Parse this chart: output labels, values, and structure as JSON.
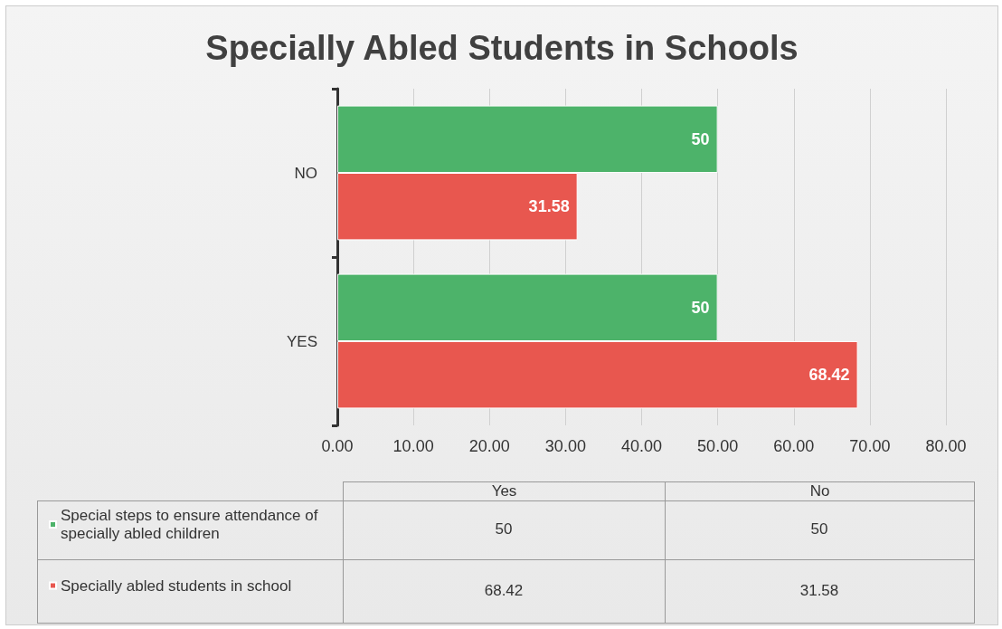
{
  "chart_data": {
    "type": "bar",
    "orientation": "horizontal",
    "title": "Specially Abled Students in Schools",
    "categories": [
      "NO",
      "YES"
    ],
    "series": [
      {
        "name": "Special steps to ensure attendance of specially abled children",
        "color": "#4db36a",
        "values": [
          50,
          50
        ]
      },
      {
        "name": "Specially abled students in school",
        "color": "#e8574f",
        "values": [
          31.58,
          68.42
        ]
      }
    ],
    "xlim": [
      0,
      80
    ],
    "xticks": [
      {
        "value": 0,
        "label": "0.00"
      },
      {
        "value": 10,
        "label": "10.00"
      },
      {
        "value": 20,
        "label": "20.00"
      },
      {
        "value": 30,
        "label": "30.00"
      },
      {
        "value": 40,
        "label": "40.00"
      },
      {
        "value": 50,
        "label": "50.00"
      },
      {
        "value": 60,
        "label": "60.00"
      },
      {
        "value": 70,
        "label": "70.00"
      },
      {
        "value": 80,
        "label": "80.00"
      }
    ],
    "grid": "x",
    "data_labels": true,
    "legend": "bottom",
    "annotations": [
      "Yes",
      "No",
      "50",
      "50",
      "68.42",
      "31.58"
    ]
  }
}
